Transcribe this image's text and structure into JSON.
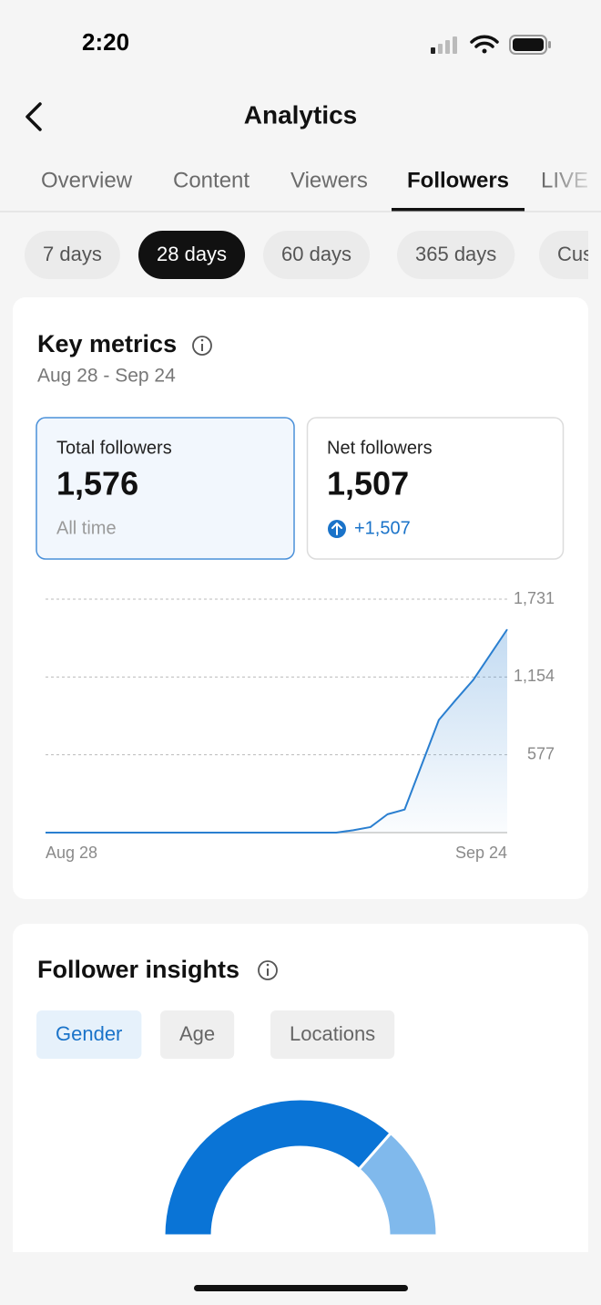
{
  "status_bar": {
    "time": "2:20"
  },
  "header": {
    "title": "Analytics"
  },
  "tabs": {
    "items": [
      "Overview",
      "Content",
      "Viewers",
      "Followers",
      "LIVE"
    ],
    "active": 3
  },
  "ranges": {
    "items": [
      "7 days",
      "28 days",
      "60 days",
      "365 days",
      "Custom"
    ],
    "active": 1
  },
  "key_metrics": {
    "title": "Key metrics",
    "date_range": "Aug 28 - Sep 24",
    "cards": [
      {
        "label": "Total followers",
        "value": "1,576",
        "note": "All time"
      },
      {
        "label": "Net followers",
        "value": "1,507",
        "change": "+1,507"
      }
    ]
  },
  "chart_data": {
    "type": "line",
    "color": "#2a7fd0",
    "categories": [
      "Aug 28",
      null,
      null,
      null,
      null,
      null,
      null,
      null,
      null,
      null,
      null,
      null,
      null,
      null,
      null,
      null,
      null,
      null,
      null,
      null,
      null,
      null,
      null,
      null,
      null,
      null,
      null,
      "Sep 24"
    ],
    "values": [
      0,
      0,
      0,
      0,
      0,
      0,
      0,
      0,
      0,
      0,
      0,
      0,
      0,
      0,
      0,
      0,
      0,
      0,
      18,
      41,
      136,
      171,
      503,
      835,
      985,
      1130,
      1318,
      1507
    ],
    "ylim": [
      0,
      1731
    ],
    "yticks": [
      577,
      {
        "value": 1154,
        "label": "1,154"
      },
      {
        "value": 1731,
        "label": "1,731"
      }
    ],
    "grid": true
  },
  "follower_insights": {
    "title": "Follower insights",
    "tabs": [
      "Gender",
      "Age",
      "Locations"
    ],
    "active": 0,
    "donut": {
      "values": [
        73,
        27
      ],
      "colors": [
        "#0a74d6",
        "#80b9ec"
      ]
    }
  }
}
